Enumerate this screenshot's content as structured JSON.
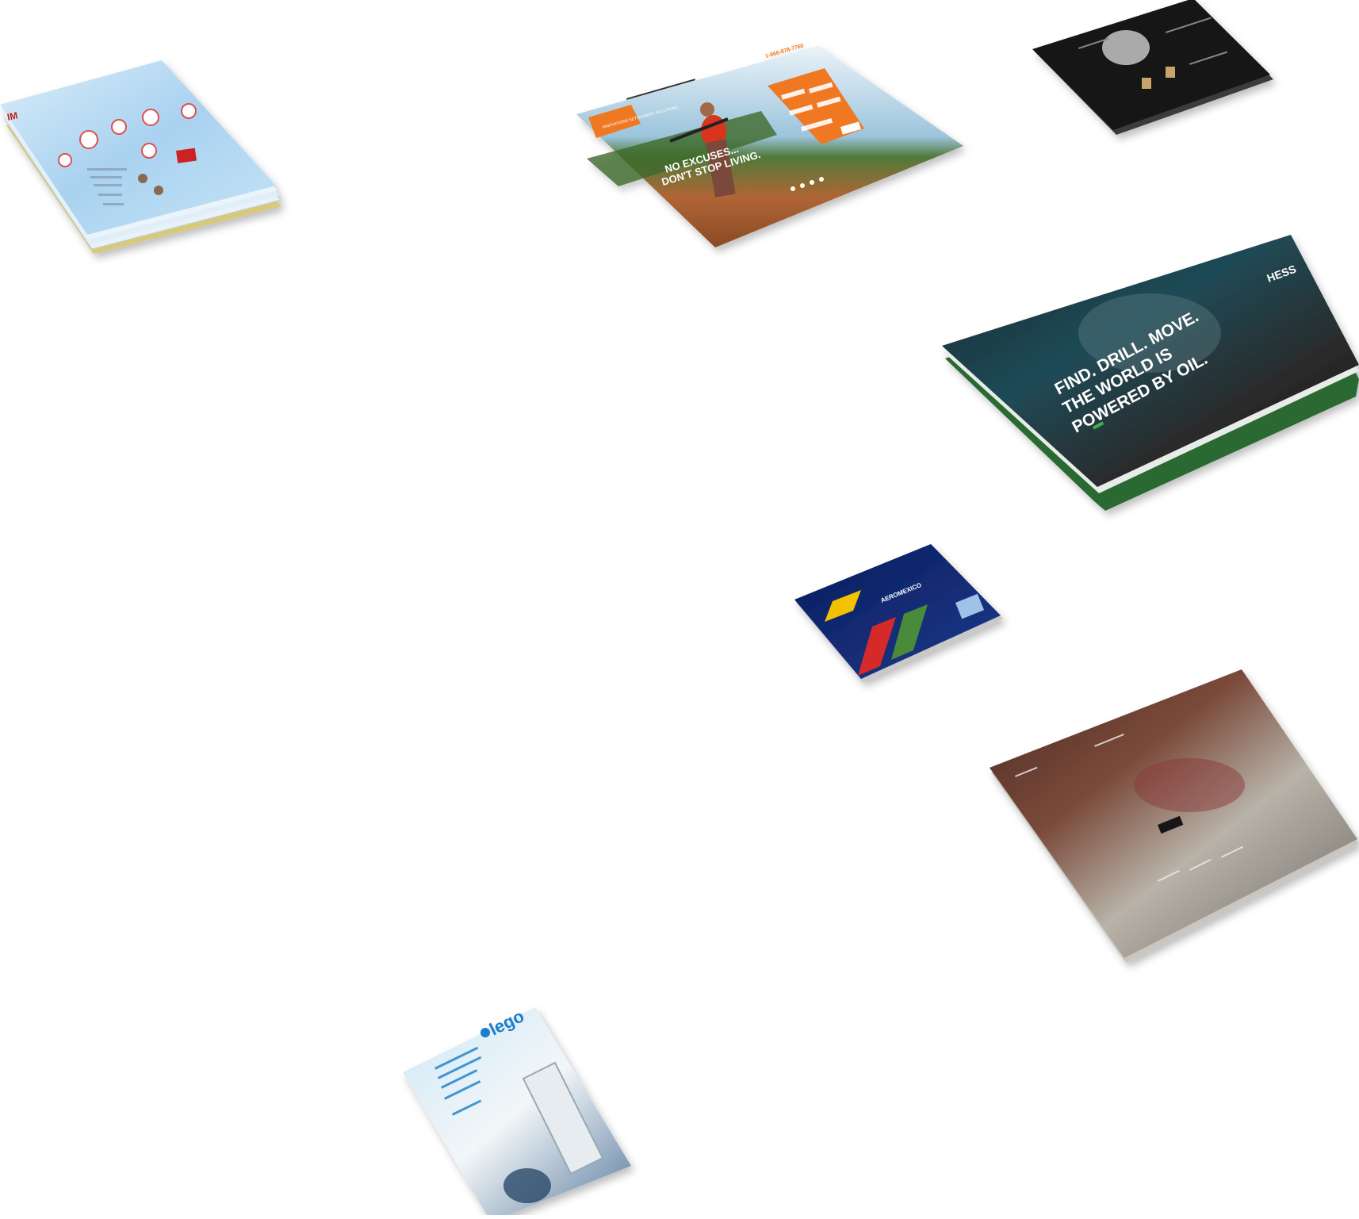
{
  "cards": [
    {
      "name": "light-blue-site",
      "label": ""
    },
    {
      "name": "orange-site",
      "headline_1": "NO EXCUSES...",
      "headline_2": "DON'T STOP LIVING.",
      "phone": "1-866-878-7760",
      "brand": "INNOVATIONS SETTLEMENT SOLUTIONS"
    },
    {
      "name": "dark-site"
    },
    {
      "name": "hess-site",
      "logo": "HESS",
      "headline_1": "FIND. DRILL. MOVE.",
      "headline_2": "THE WORLD IS",
      "headline_3": "POWERED BY OIL."
    },
    {
      "name": "credit-card",
      "bank": "AEROMEXICO"
    },
    {
      "name": "concert-hall-site"
    },
    {
      "name": "lego-site",
      "logo": "lego"
    }
  ]
}
